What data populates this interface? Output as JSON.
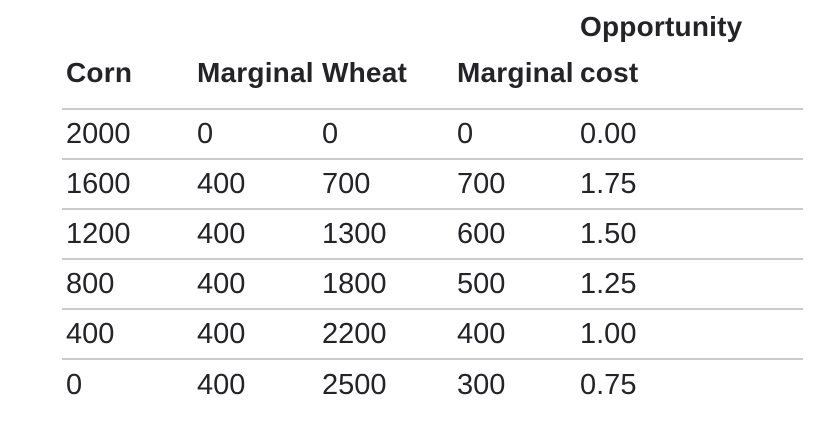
{
  "chart_data": {
    "type": "table",
    "title": "",
    "columns": [
      "Corn",
      "Marginal",
      "Wheat",
      "Marginal",
      "Opportunity cost"
    ],
    "rows": [
      [
        "2000",
        "0",
        "0",
        "0",
        "0.00"
      ],
      [
        "1600",
        "400",
        "700",
        "700",
        "1.75"
      ],
      [
        "1200",
        "400",
        "1300",
        "600",
        "1.50"
      ],
      [
        "800",
        "400",
        "1800",
        "500",
        "1.25"
      ],
      [
        "400",
        "400",
        "2200",
        "400",
        "1.00"
      ],
      [
        "0",
        "400",
        "2500",
        "300",
        "0.75"
      ]
    ]
  },
  "colors": {
    "text": "#242428",
    "divider": "#cbcbcb",
    "background": "#ffffff"
  }
}
